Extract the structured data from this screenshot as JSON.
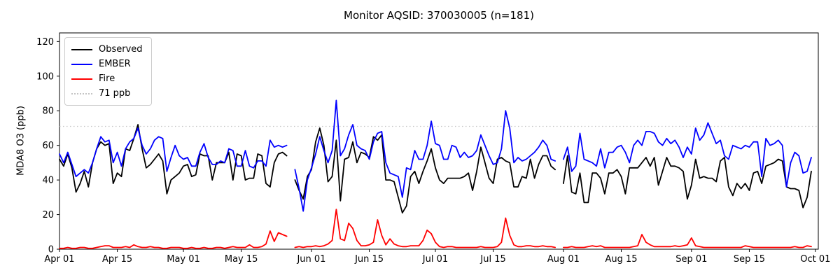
{
  "chart_data": {
    "type": "line",
    "title": "Monitor AQSID: 370030005 (n=181)",
    "ylabel": "MDA8 O3 (ppb)",
    "xlabel": "",
    "ylim": [
      0,
      125
    ],
    "y_ticks": [
      0,
      20,
      40,
      60,
      80,
      100,
      120
    ],
    "x_ticks": [
      {
        "day": 0,
        "label": "Apr 01"
      },
      {
        "day": 14,
        "label": "Apr 15"
      },
      {
        "day": 30,
        "label": "May 01"
      },
      {
        "day": 44,
        "label": "May 15"
      },
      {
        "day": 61,
        "label": "Jun 01"
      },
      {
        "day": 75,
        "label": "Jun 15"
      },
      {
        "day": 91,
        "label": "Jul 01"
      },
      {
        "day": 105,
        "label": "Jul 15"
      },
      {
        "day": 122,
        "label": "Aug 01"
      },
      {
        "day": 136,
        "label": "Aug 15"
      },
      {
        "day": 153,
        "label": "Sep 01"
      },
      {
        "day": 167,
        "label": "Sep 15"
      },
      {
        "day": 183,
        "label": "Oct 01"
      }
    ],
    "x_values_start": "Apr 01",
    "x_values_interval": "1 day",
    "grid": false,
    "legend_position": "upper left",
    "threshold": {
      "value": 71,
      "label": "71 ppb",
      "color": "#c4c4c4",
      "style": "dotted"
    },
    "series": [
      {
        "id": "observed",
        "name": "Observed",
        "color": "#000000",
        "values": [
          52,
          48,
          55,
          47,
          33,
          38,
          45,
          36,
          50,
          58,
          62,
          60,
          61,
          38,
          44,
          42,
          58,
          57,
          64,
          72,
          58,
          47,
          49,
          52,
          55,
          51,
          32,
          40,
          42,
          44,
          48,
          49,
          42,
          43,
          55,
          54,
          54,
          40,
          50,
          50,
          50,
          56,
          40,
          55,
          54,
          40,
          41,
          41,
          55,
          54,
          38,
          36,
          50,
          55,
          56,
          54,
          null,
          40,
          34,
          29,
          42,
          46,
          62,
          70,
          60,
          39,
          42,
          63,
          28,
          52,
          53,
          62,
          50,
          56,
          55,
          53,
          65,
          63,
          66,
          40,
          40,
          39,
          30,
          21,
          25,
          42,
          45,
          38,
          45,
          51,
          58,
          47,
          40,
          38,
          41,
          41,
          41,
          41,
          42,
          44,
          34,
          45,
          59,
          50,
          41,
          38,
          52,
          53,
          51,
          50,
          36,
          36,
          42,
          41,
          52,
          41,
          49,
          54,
          54,
          48,
          46,
          null,
          38,
          54,
          33,
          32,
          44,
          27,
          27,
          44,
          44,
          41,
          32,
          44,
          44,
          46,
          42,
          32,
          47,
          47,
          47,
          50,
          53,
          48,
          53,
          37,
          45,
          53,
          48,
          48,
          47,
          45,
          29,
          37,
          52,
          41,
          42,
          41,
          41,
          39,
          51,
          53,
          36,
          31,
          38,
          35,
          38,
          34,
          44,
          45,
          38,
          48,
          49,
          50,
          52,
          51,
          36,
          35,
          35,
          34,
          24,
          30,
          45
        ]
      },
      {
        "id": "ember",
        "name": "EMBER",
        "color": "#0000ff",
        "values": [
          55,
          50,
          56,
          49,
          42,
          44,
          46,
          44,
          50,
          58,
          65,
          62,
          63,
          50,
          56,
          48,
          58,
          62,
          64,
          70,
          60,
          55,
          58,
          63,
          65,
          64,
          45,
          53,
          60,
          54,
          52,
          53,
          48,
          48,
          56,
          61,
          53,
          49,
          49,
          51,
          50,
          58,
          57,
          48,
          48,
          57,
          48,
          47,
          51,
          51,
          48,
          63,
          59,
          60,
          59,
          60,
          null,
          46,
          35,
          22,
          40,
          47,
          55,
          65,
          57,
          50,
          57,
          86,
          54,
          58,
          66,
          72,
          60,
          58,
          57,
          52,
          62,
          67,
          68,
          50,
          44,
          43,
          42,
          30,
          47,
          46,
          57,
          52,
          52,
          60,
          74,
          61,
          60,
          52,
          52,
          60,
          59,
          53,
          56,
          53,
          54,
          57,
          66,
          60,
          54,
          49,
          50,
          58,
          80,
          70,
          50,
          53,
          51,
          52,
          54,
          56,
          59,
          63,
          60,
          52,
          51,
          null,
          52,
          59,
          45,
          48,
          67,
          52,
          51,
          50,
          48,
          58,
          47,
          56,
          56,
          59,
          60,
          56,
          50,
          60,
          63,
          60,
          68,
          68,
          67,
          62,
          60,
          64,
          61,
          63,
          59,
          53,
          59,
          55,
          70,
          63,
          66,
          73,
          67,
          61,
          63,
          54,
          52,
          60,
          59,
          58,
          60,
          59,
          62,
          62,
          42,
          64,
          60,
          61,
          63,
          60,
          36,
          50,
          56,
          54,
          44,
          45,
          53
        ]
      },
      {
        "id": "fire",
        "name": "Fire",
        "color": "#ff0000",
        "values": [
          0.5,
          0.5,
          1,
          0.5,
          0.5,
          1,
          1,
          0.5,
          0.5,
          1,
          1.5,
          2,
          2,
          1,
          1,
          1,
          1.5,
          1,
          2.5,
          1.5,
          1,
          1,
          1.5,
          1,
          1,
          0.5,
          0.5,
          1,
          1,
          1,
          0.5,
          0.5,
          1,
          0.5,
          0.5,
          1,
          0.5,
          0.5,
          1,
          1,
          0.5,
          1,
          1.5,
          1,
          1,
          1,
          2.5,
          1,
          1,
          1.5,
          3,
          10.5,
          4.5,
          9.5,
          8.5,
          7.5,
          null,
          1,
          1.5,
          1,
          1.5,
          1.5,
          2,
          1.5,
          2,
          3,
          5,
          23,
          6,
          5,
          15,
          12,
          5,
          2,
          2,
          2.5,
          4,
          17,
          8,
          2.5,
          6,
          3,
          2,
          1.5,
          1.5,
          2,
          2,
          2,
          5,
          11,
          9,
          4,
          1.5,
          1,
          1.5,
          1.5,
          1,
          1,
          1,
          1,
          1,
          1,
          1.5,
          1,
          1,
          1,
          1.5,
          4,
          18,
          8,
          2.5,
          1.5,
          1.5,
          2,
          2,
          1.5,
          1.5,
          2,
          1.5,
          1.5,
          1,
          null,
          1,
          1,
          1.5,
          1,
          1,
          1,
          1.5,
          2,
          1.5,
          2,
          1,
          1,
          1,
          1,
          1,
          1,
          1,
          1.5,
          2,
          8.5,
          4,
          2.5,
          1.5,
          1.5,
          1.5,
          1.5,
          1.5,
          2,
          1.5,
          2,
          2.5,
          6.5,
          2,
          1.5,
          1,
          1,
          1,
          1,
          1,
          1,
          1,
          1,
          1,
          1,
          2,
          1.5,
          1,
          1,
          1,
          1,
          1,
          1,
          1,
          1,
          1,
          1,
          1.5,
          1,
          1,
          2,
          1.5
        ]
      }
    ]
  }
}
